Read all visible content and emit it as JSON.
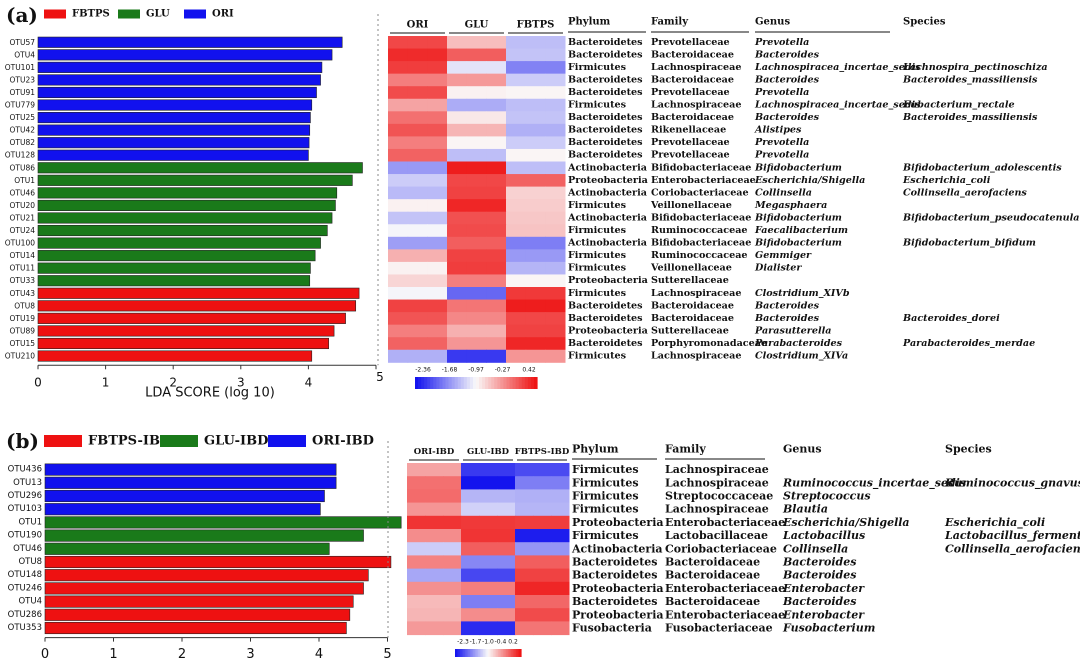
{
  "panel_a": {
    "label": "(a)",
    "legend": [
      {
        "name": "FBTPS",
        "color": "#ee1111"
      },
      {
        "name": "GLU",
        "color": "#1a7a1a"
      },
      {
        "name": "ORI",
        "color": "#1111ee"
      }
    ],
    "xlabel": "LDA SCORE (log 10)",
    "xticks": [
      "0",
      "1",
      "2",
      "3",
      "4",
      "5"
    ],
    "heat_headers": [
      "ORI",
      "GLU",
      "FBTPS"
    ],
    "tax_headers": [
      "Phylum",
      "Family",
      "Genus",
      "Species"
    ],
    "colorbar_ticks": [
      "-2.36",
      "-1.68",
      "-0.97",
      "-0.27",
      "0.42"
    ],
    "rows": [
      {
        "otu": "OTU57",
        "lda": 4.5,
        "g": "ORI",
        "heat": [
          0.9,
          0.2,
          -0.2
        ],
        "phylum": "Bacteroidetes",
        "family": "Prevotellaceae",
        "genus": "Prevotella",
        "species": ""
      },
      {
        "otu": "OTU4",
        "lda": 4.35,
        "g": "ORI",
        "heat": [
          0.9,
          0.8,
          -0.3
        ],
        "phylum": "Bacteroidetes",
        "family": "Bacteroidaceae",
        "genus": "Bacteroides",
        "species": ""
      },
      {
        "otu": "OTU101",
        "lda": 4.2,
        "g": "ORI",
        "heat": [
          0.7,
          -0.1,
          -0.4
        ],
        "phylum": "Firmicutes",
        "family": "Lachnospiraceae",
        "genus": "Lachnospiracea_incertae_sedis",
        "species": "Lachnospira_pectinoschiza"
      },
      {
        "otu": "OTU23",
        "lda": 4.18,
        "g": "ORI",
        "heat": [
          0.6,
          0.3,
          -0.2
        ],
        "phylum": "Bacteroidetes",
        "family": "Bacteroidaceae",
        "genus": "Bacteroides",
        "species": "Bacteroides_massiliensis"
      },
      {
        "otu": "OTU91",
        "lda": 4.12,
        "g": "ORI",
        "heat": [
          0.7,
          0.1,
          -0.1
        ],
        "phylum": "Bacteroidetes",
        "family": "Prevotellaceae",
        "genus": "Prevotella",
        "species": ""
      },
      {
        "otu": "OTU779",
        "lda": 4.05,
        "g": "ORI",
        "heat": [
          0.5,
          -0.4,
          -0.2
        ],
        "phylum": "Firmicutes",
        "family": "Lachnospiraceae",
        "genus": "Lachnospiracea_incertae_sedis",
        "species": "Eubacterium_rectale"
      },
      {
        "otu": "OTU25",
        "lda": 4.03,
        "g": "ORI",
        "heat": [
          0.6,
          0.2,
          -0.3
        ],
        "phylum": "Bacteroidetes",
        "family": "Bacteroidaceae",
        "genus": "Bacteroides",
        "species": "Bacteroides_massiliensis"
      },
      {
        "otu": "OTU42",
        "lda": 4.02,
        "g": "ORI",
        "heat": [
          0.6,
          0.3,
          -0.2
        ],
        "phylum": "Bacteroidetes",
        "family": "Rikenellaceae",
        "genus": "Alistipes",
        "species": ""
      },
      {
        "otu": "OTU82",
        "lda": 4.01,
        "g": "ORI",
        "heat": [
          0.6,
          -0.1,
          -0.2
        ],
        "phylum": "Bacteroidetes",
        "family": "Prevotellaceae",
        "genus": "Prevotella",
        "species": ""
      },
      {
        "otu": "OTU128",
        "lda": 4.0,
        "g": "ORI",
        "heat": [
          0.6,
          -0.2,
          -0.1
        ],
        "phylum": "Bacteroidetes",
        "family": "Prevotellaceae",
        "genus": "Prevotella",
        "species": ""
      },
      {
        "otu": "OTU86",
        "lda": 4.8,
        "g": "GLU",
        "heat": [
          -0.3,
          0.9,
          -0.2
        ],
        "phylum": "Actinobacteria",
        "family": "Bifidobacteriaceae",
        "genus": "Bifidobacterium",
        "species": "Bifidobacterium_adolescentis"
      },
      {
        "otu": "OTU1",
        "lda": 4.65,
        "g": "GLU",
        "heat": [
          -0.2,
          0.9,
          0.6
        ],
        "phylum": "Proteobacteria",
        "family": "Enterobacteriaceae",
        "genus": "Escherichia/Shigella",
        "species": "Escherichia_coli"
      },
      {
        "otu": "OTU46",
        "lda": 4.42,
        "g": "GLU",
        "heat": [
          -0.4,
          0.8,
          0.3
        ],
        "phylum": "Actinobacteria",
        "family": "Coriobacteriaceae",
        "genus": "Collinsella",
        "species": "Collinsella_aerofaciens"
      },
      {
        "otu": "OTU20",
        "lda": 4.4,
        "g": "GLU",
        "heat": [
          0.1,
          0.8,
          0.2
        ],
        "phylum": "Firmicutes",
        "family": "Veillonellaceae",
        "genus": "Megasphaera",
        "species": ""
      },
      {
        "otu": "OTU21",
        "lda": 4.35,
        "g": "GLU",
        "heat": [
          -0.3,
          0.8,
          0.1
        ],
        "phylum": "Actinobacteria",
        "family": "Bifidobacteriaceae",
        "genus": "Bifidobacterium",
        "species": "Bifidobacterium_pseudocatenulatum"
      },
      {
        "otu": "OTU24",
        "lda": 4.28,
        "g": "GLU",
        "heat": [
          0.1,
          0.7,
          0.3
        ],
        "phylum": "Firmicutes",
        "family": "Ruminococcaceae",
        "genus": "Faecalibacterium",
        "species": ""
      },
      {
        "otu": "OTU100",
        "lda": 4.18,
        "g": "GLU",
        "heat": [
          -0.4,
          0.8,
          -0.6
        ],
        "phylum": "Actinobacteria",
        "family": "Bifidobacteriaceae",
        "genus": "Bifidobacterium",
        "species": "Bifidobacterium_bifidum"
      },
      {
        "otu": "OTU14",
        "lda": 4.1,
        "g": "GLU",
        "heat": [
          0.2,
          0.8,
          -0.3
        ],
        "phylum": "Firmicutes",
        "family": "Ruminococcaceae",
        "genus": "Gemmiger",
        "species": ""
      },
      {
        "otu": "OTU11",
        "lda": 4.03,
        "g": "GLU",
        "heat": [
          0.1,
          0.7,
          -0.3
        ],
        "phylum": "Firmicutes",
        "family": "Veillonellaceae",
        "genus": "Dialister",
        "species": ""
      },
      {
        "otu": "OTU33",
        "lda": 4.02,
        "g": "GLU",
        "heat": [
          0.1,
          0.6,
          -0.1
        ],
        "phylum": "Proteobacteria",
        "family": "Sutterellaceae",
        "genus": "",
        "species": ""
      },
      {
        "otu": "OTU43",
        "lda": 4.75,
        "g": "FBTPS",
        "heat": [
          0.1,
          -0.7,
          0.9
        ],
        "phylum": "Firmicutes",
        "family": "Lachnospiraceae",
        "genus": "Clostridium_XIVb",
        "species": ""
      },
      {
        "otu": "OTU8",
        "lda": 4.7,
        "g": "FBTPS",
        "heat": [
          0.8,
          0.7,
          0.9
        ],
        "phylum": "Bacteroidetes",
        "family": "Bacteroidaceae",
        "genus": "Bacteroides",
        "species": ""
      },
      {
        "otu": "OTU19",
        "lda": 4.55,
        "g": "FBTPS",
        "heat": [
          0.6,
          0.5,
          0.9
        ],
        "phylum": "Bacteroidetes",
        "family": "Bacteroidaceae",
        "genus": "Bacteroides",
        "species": "Bacteroides_dorei"
      },
      {
        "otu": "OTU89",
        "lda": 4.38,
        "g": "FBTPS",
        "heat": [
          0.6,
          0.2,
          0.8
        ],
        "phylum": "Proteobacteria",
        "family": "Sutterellaceae",
        "genus": "Parasutterella",
        "species": ""
      },
      {
        "otu": "OTU15",
        "lda": 4.3,
        "g": "FBTPS",
        "heat": [
          0.6,
          0.5,
          0.8
        ],
        "phylum": "Bacteroidetes",
        "family": "Porphyromonadaceae",
        "genus": "Parabacteroides",
        "species": "Parabacteroides_merdae"
      },
      {
        "otu": "OTU210",
        "lda": 4.05,
        "g": "FBTPS",
        "heat": [
          -0.2,
          -0.9,
          0.5
        ],
        "phylum": "Firmicutes",
        "family": "Lachnospiraceae",
        "genus": "Clostridium_XIVa",
        "species": ""
      }
    ]
  },
  "panel_b": {
    "label": "(b)",
    "legend": [
      {
        "name": "FBTPS-IBD",
        "color": "#ee1111"
      },
      {
        "name": "GLU-IBD",
        "color": "#1a7a1a"
      },
      {
        "name": "ORI-IBD",
        "color": "#1111ee"
      }
    ],
    "xticks": [
      "0",
      "1",
      "2",
      "3",
      "4",
      "5"
    ],
    "heat_headers": [
      "ORI-IBD",
      "GLU-IBD",
      "FBTPS-IBD"
    ],
    "tax_headers": [
      "Phylum",
      "Family",
      "Genus",
      "Species"
    ],
    "colorbar_ticks": [
      "-2.3",
      "-1.7",
      "-1.0",
      "-0.4",
      "0.2"
    ],
    "rows": [
      {
        "otu": "OTU436",
        "lda": 4.25,
        "g": "ORI",
        "heat": [
          0.5,
          -0.9,
          -0.7
        ],
        "phylum": "Firmicutes",
        "family": "Lachnospiraceae",
        "genus": "",
        "species": ""
      },
      {
        "otu": "OTU13",
        "lda": 4.25,
        "g": "ORI",
        "heat": [
          0.6,
          -0.9,
          -0.6
        ],
        "phylum": "Firmicutes",
        "family": "Lachnospiraceae",
        "genus": "Ruminococcus_incertae_sedis",
        "species": "Ruminococcus_gnavus"
      },
      {
        "otu": "OTU296",
        "lda": 4.08,
        "g": "ORI",
        "heat": [
          0.5,
          -0.3,
          -0.2
        ],
        "phylum": "Firmicutes",
        "family": "Streptococcaceae",
        "genus": "Streptococcus",
        "species": ""
      },
      {
        "otu": "OTU103",
        "lda": 4.02,
        "g": "ORI",
        "heat": [
          0.5,
          -0.3,
          -0.3
        ],
        "phylum": "Firmicutes",
        "family": "Lachnospiraceae",
        "genus": "Blautia",
        "species": ""
      },
      {
        "otu": "OTU1",
        "lda": 5.2,
        "g": "GLU",
        "heat": [
          0.8,
          0.9,
          0.7
        ],
        "phylum": "Proteobacteria",
        "family": "Enterobacteriaceae",
        "genus": "Escherichia/Shigella",
        "species": "Escherichia_coli"
      },
      {
        "otu": "OTU190",
        "lda": 4.65,
        "g": "GLU",
        "heat": [
          0.6,
          0.8,
          -0.9
        ],
        "phylum": "Firmicutes",
        "family": "Lactobacillaceae",
        "genus": "Lactobacillus",
        "species": "Lactobacillus_fermentum"
      },
      {
        "otu": "OTU46",
        "lda": 4.15,
        "g": "GLU",
        "heat": [
          -0.2,
          0.8,
          -0.5
        ],
        "phylum": "Actinobacteria",
        "family": "Coriobacteriaceae",
        "genus": "Collinsella",
        "species": "Collinsella_aerofaciens"
      },
      {
        "otu": "OTU8",
        "lda": 5.05,
        "g": "FBTPS",
        "heat": [
          0.4,
          -0.5,
          0.8
        ],
        "phylum": "Bacteroidetes",
        "family": "Bacteroidaceae",
        "genus": "Bacteroides",
        "species": ""
      },
      {
        "otu": "OTU148",
        "lda": 4.72,
        "g": "FBTPS",
        "heat": [
          -0.3,
          -0.9,
          0.8
        ],
        "phylum": "Bacteroidetes",
        "family": "Bacteroidaceae",
        "genus": "Bacteroides",
        "species": ""
      },
      {
        "otu": "OTU246",
        "lda": 4.65,
        "g": "FBTPS",
        "heat": [
          0.4,
          0.6,
          0.8
        ],
        "phylum": "Proteobacteria",
        "family": "Enterobacteriaceae",
        "genus": "Enterobacter",
        "species": ""
      },
      {
        "otu": "OTU4",
        "lda": 4.5,
        "g": "FBTPS",
        "heat": [
          0.4,
          -0.6,
          0.7
        ],
        "phylum": "Bacteroidetes",
        "family": "Bacteroidaceae",
        "genus": "Bacteroides",
        "species": ""
      },
      {
        "otu": "OTU286",
        "lda": 4.45,
        "g": "FBTPS",
        "heat": [
          0.3,
          0.6,
          0.7
        ],
        "phylum": "Proteobacteria",
        "family": "Enterobacteriaceae",
        "genus": "Enterobacter",
        "species": ""
      },
      {
        "otu": "OTU353",
        "lda": 4.4,
        "g": "FBTPS",
        "heat": [
          0.3,
          -0.9,
          0.7
        ],
        "phylum": "Fusobacteria",
        "family": "Fusobacteriaceae",
        "genus": "Fusobacterium",
        "species": ""
      }
    ]
  },
  "chart_data": [
    {
      "type": "bar",
      "title": "(a)",
      "xlabel": "LDA SCORE (log 10)",
      "xlim": [
        0,
        5
      ],
      "categories": [
        "OTU57",
        "OTU4",
        "OTU101",
        "OTU23",
        "OTU91",
        "OTU779",
        "OTU25",
        "OTU42",
        "OTU82",
        "OTU128",
        "OTU86",
        "OTU1",
        "OTU46",
        "OTU20",
        "OTU21",
        "OTU24",
        "OTU100",
        "OTU14",
        "OTU11",
        "OTU33",
        "OTU43",
        "OTU8",
        "OTU19",
        "OTU89",
        "OTU15",
        "OTU210"
      ],
      "series": [
        {
          "name": "ORI",
          "values": [
            4.5,
            4.35,
            4.2,
            4.18,
            4.12,
            4.05,
            4.03,
            4.02,
            4.01,
            4.0,
            null,
            null,
            null,
            null,
            null,
            null,
            null,
            null,
            null,
            null,
            null,
            null,
            null,
            null,
            null,
            null
          ]
        },
        {
          "name": "GLU",
          "values": [
            null,
            null,
            null,
            null,
            null,
            null,
            null,
            null,
            null,
            null,
            4.8,
            4.65,
            4.42,
            4.4,
            4.35,
            4.28,
            4.18,
            4.1,
            4.03,
            4.02,
            null,
            null,
            null,
            null,
            null,
            null
          ]
        },
        {
          "name": "FBTPS",
          "values": [
            null,
            null,
            null,
            null,
            null,
            null,
            null,
            null,
            null,
            null,
            null,
            null,
            null,
            null,
            null,
            null,
            null,
            null,
            null,
            null,
            4.75,
            4.7,
            4.55,
            4.38,
            4.3,
            4.05
          ]
        }
      ]
    },
    {
      "type": "bar",
      "title": "(b)",
      "xlim": [
        0,
        5
      ],
      "categories": [
        "OTU436",
        "OTU13",
        "OTU296",
        "OTU103",
        "OTU1",
        "OTU190",
        "OTU46",
        "OTU8",
        "OTU148",
        "OTU246",
        "OTU4",
        "OTU286",
        "OTU353"
      ],
      "series": [
        {
          "name": "ORI-IBD",
          "values": [
            4.25,
            4.25,
            4.08,
            4.02,
            null,
            null,
            null,
            null,
            null,
            null,
            null,
            null,
            null
          ]
        },
        {
          "name": "GLU-IBD",
          "values": [
            null,
            null,
            null,
            null,
            5.2,
            4.65,
            4.15,
            null,
            null,
            null,
            null,
            null,
            null
          ]
        },
        {
          "name": "FBTPS-IBD",
          "values": [
            null,
            null,
            null,
            null,
            null,
            null,
            null,
            5.05,
            4.72,
            4.65,
            4.5,
            4.45,
            4.4
          ]
        }
      ]
    }
  ]
}
